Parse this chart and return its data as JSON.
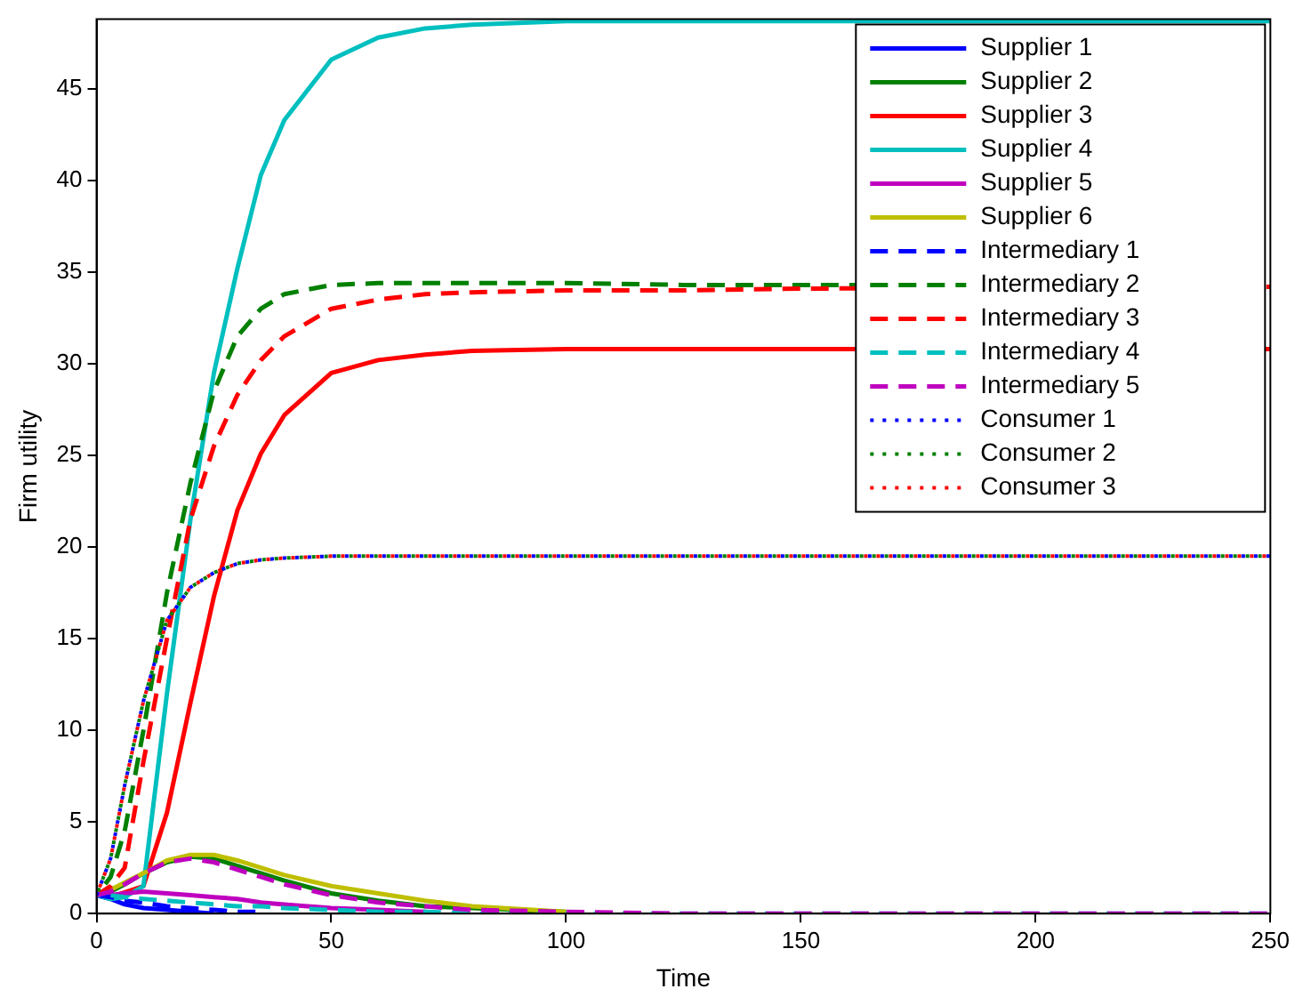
{
  "chart_data": {
    "type": "line",
    "xlabel": "Time",
    "ylabel": "Firm utility",
    "xlim": [
      0,
      250
    ],
    "xticks": [
      0,
      50,
      100,
      150,
      200,
      250
    ],
    "ylim": [
      0,
      48.8
    ],
    "yticks": [
      0,
      5,
      10,
      15,
      20,
      25,
      30,
      35,
      40,
      45
    ],
    "grid": false,
    "legend": "top right",
    "marker": "none",
    "x": [
      0,
      3,
      6,
      10,
      15,
      20,
      25,
      30,
      35,
      40,
      50,
      60,
      70,
      80,
      100,
      125,
      150,
      200,
      250
    ],
    "series": [
      {
        "name": "Supplier 1",
        "color": "#0000ff",
        "line_style": "solid",
        "values": [
          1,
          0.8,
          0.5,
          0.3,
          0.2,
          0.1,
          0,
          null,
          null,
          null,
          null,
          null,
          null,
          null,
          null,
          null,
          null,
          null,
          null
        ]
      },
      {
        "name": "Supplier 2",
        "color": "#008000",
        "line_style": "solid",
        "values": [
          1,
          1.2,
          1.6,
          2.2,
          2.8,
          3.1,
          3.0,
          2.6,
          2.2,
          1.8,
          1.1,
          0.7,
          0.4,
          0.3,
          0.1,
          null,
          null,
          null,
          null
        ]
      },
      {
        "name": "Supplier 3",
        "color": "#ff0000",
        "line_style": "solid",
        "values": [
          1,
          0.9,
          null,
          1.5,
          5.5,
          11.5,
          17.3,
          22,
          25.1,
          27.2,
          29.5,
          30.2,
          30.5,
          30.7,
          30.8,
          30.8,
          30.8,
          null,
          30.8
        ]
      },
      {
        "name": "Supplier 4",
        "color": "#00bfbf",
        "line_style": "solid",
        "values": [
          1,
          0.8,
          0.9,
          1.5,
          12,
          21.5,
          29.5,
          35.2,
          40.3,
          43.3,
          46.6,
          47.8,
          48.3,
          48.5,
          48.7,
          48.7,
          48.7,
          48.7,
          48.7
        ]
      },
      {
        "name": "Supplier 5",
        "color": "#bf00bf",
        "line_style": "solid",
        "values": [
          1,
          1.0,
          1.1,
          1.2,
          1.1,
          1.0,
          0.9,
          0.8,
          0.6,
          0.5,
          0.3,
          0.2,
          0.1,
          null,
          null,
          null,
          null,
          null,
          null
        ]
      },
      {
        "name": "Supplier 6",
        "color": "#bfbf00",
        "line_style": "solid",
        "values": [
          1,
          1.3,
          1.7,
          2.2,
          2.9,
          3.2,
          3.2,
          2.9,
          2.5,
          2.1,
          1.5,
          1.1,
          0.7,
          0.4,
          0.1,
          null,
          null,
          null,
          null
        ]
      },
      {
        "name": "Intermediary 1",
        "color": "#0000ff",
        "line_style": "dashed",
        "values": [
          1,
          0.9,
          0.7,
          0.6,
          0.4,
          0.3,
          0.2,
          0.1,
          0.1,
          null,
          null,
          null,
          null,
          null,
          null,
          null,
          null,
          null,
          null
        ]
      },
      {
        "name": "Intermediary 2",
        "color": "#008000",
        "line_style": "dashed",
        "values": [
          1,
          2,
          4.5,
          10,
          17.5,
          23.5,
          28.5,
          31.5,
          33,
          33.8,
          34.3,
          34.4,
          34.4,
          34.4,
          34.4,
          34.3,
          34.3,
          null,
          34.2
        ]
      },
      {
        "name": "Intermediary 3",
        "color": "#ff0000",
        "line_style": "dashed",
        "values": [
          1,
          1.5,
          2.5,
          8.3,
          15,
          21.5,
          25.5,
          28.3,
          30.2,
          31.5,
          33,
          33.5,
          33.8,
          33.9,
          34.0,
          34.0,
          34.1,
          null,
          34.2
        ]
      },
      {
        "name": "Intermediary 4",
        "color": "#00bfbf",
        "line_style": "dashed",
        "values": [
          1,
          1.0,
          0.9,
          0.8,
          0.7,
          0.6,
          0.5,
          0.4,
          0.4,
          0.3,
          0.2,
          0.1,
          0.1,
          0,
          0,
          0,
          0,
          0,
          0
        ]
      },
      {
        "name": "Intermediary 5",
        "color": "#bf00bf",
        "line_style": "dashed",
        "values": [
          1,
          1.2,
          1.6,
          2.2,
          2.8,
          3.0,
          2.8,
          2.4,
          2.0,
          1.6,
          1.0,
          0.6,
          0.4,
          0.2,
          0.1,
          0,
          0,
          0,
          0
        ]
      },
      {
        "name": "Consumer 1",
        "color": "#0000ff",
        "line_style": "dotted",
        "values": [
          1,
          3,
          7,
          11.6,
          16,
          17.8,
          18.6,
          19.1,
          19.3,
          19.4,
          19.5,
          19.5,
          19.5,
          19.5,
          19.5,
          19.5,
          19.5,
          19.5,
          19.5
        ]
      },
      {
        "name": "Consumer 2",
        "color": "#008000",
        "line_style": "dotted",
        "values": [
          1,
          3,
          7,
          11.6,
          16,
          17.8,
          18.6,
          19.1,
          19.3,
          19.4,
          19.5,
          19.5,
          19.5,
          19.5,
          19.5,
          19.5,
          19.5,
          19.5,
          19.5
        ]
      },
      {
        "name": "Consumer 3",
        "color": "#ff0000",
        "line_style": "dotted",
        "values": [
          1,
          3,
          7,
          11.6,
          16,
          17.8,
          18.6,
          19.1,
          19.3,
          19.4,
          19.5,
          19.5,
          19.5,
          19.5,
          19.5,
          19.5,
          19.5,
          19.5,
          19.5
        ]
      }
    ]
  }
}
